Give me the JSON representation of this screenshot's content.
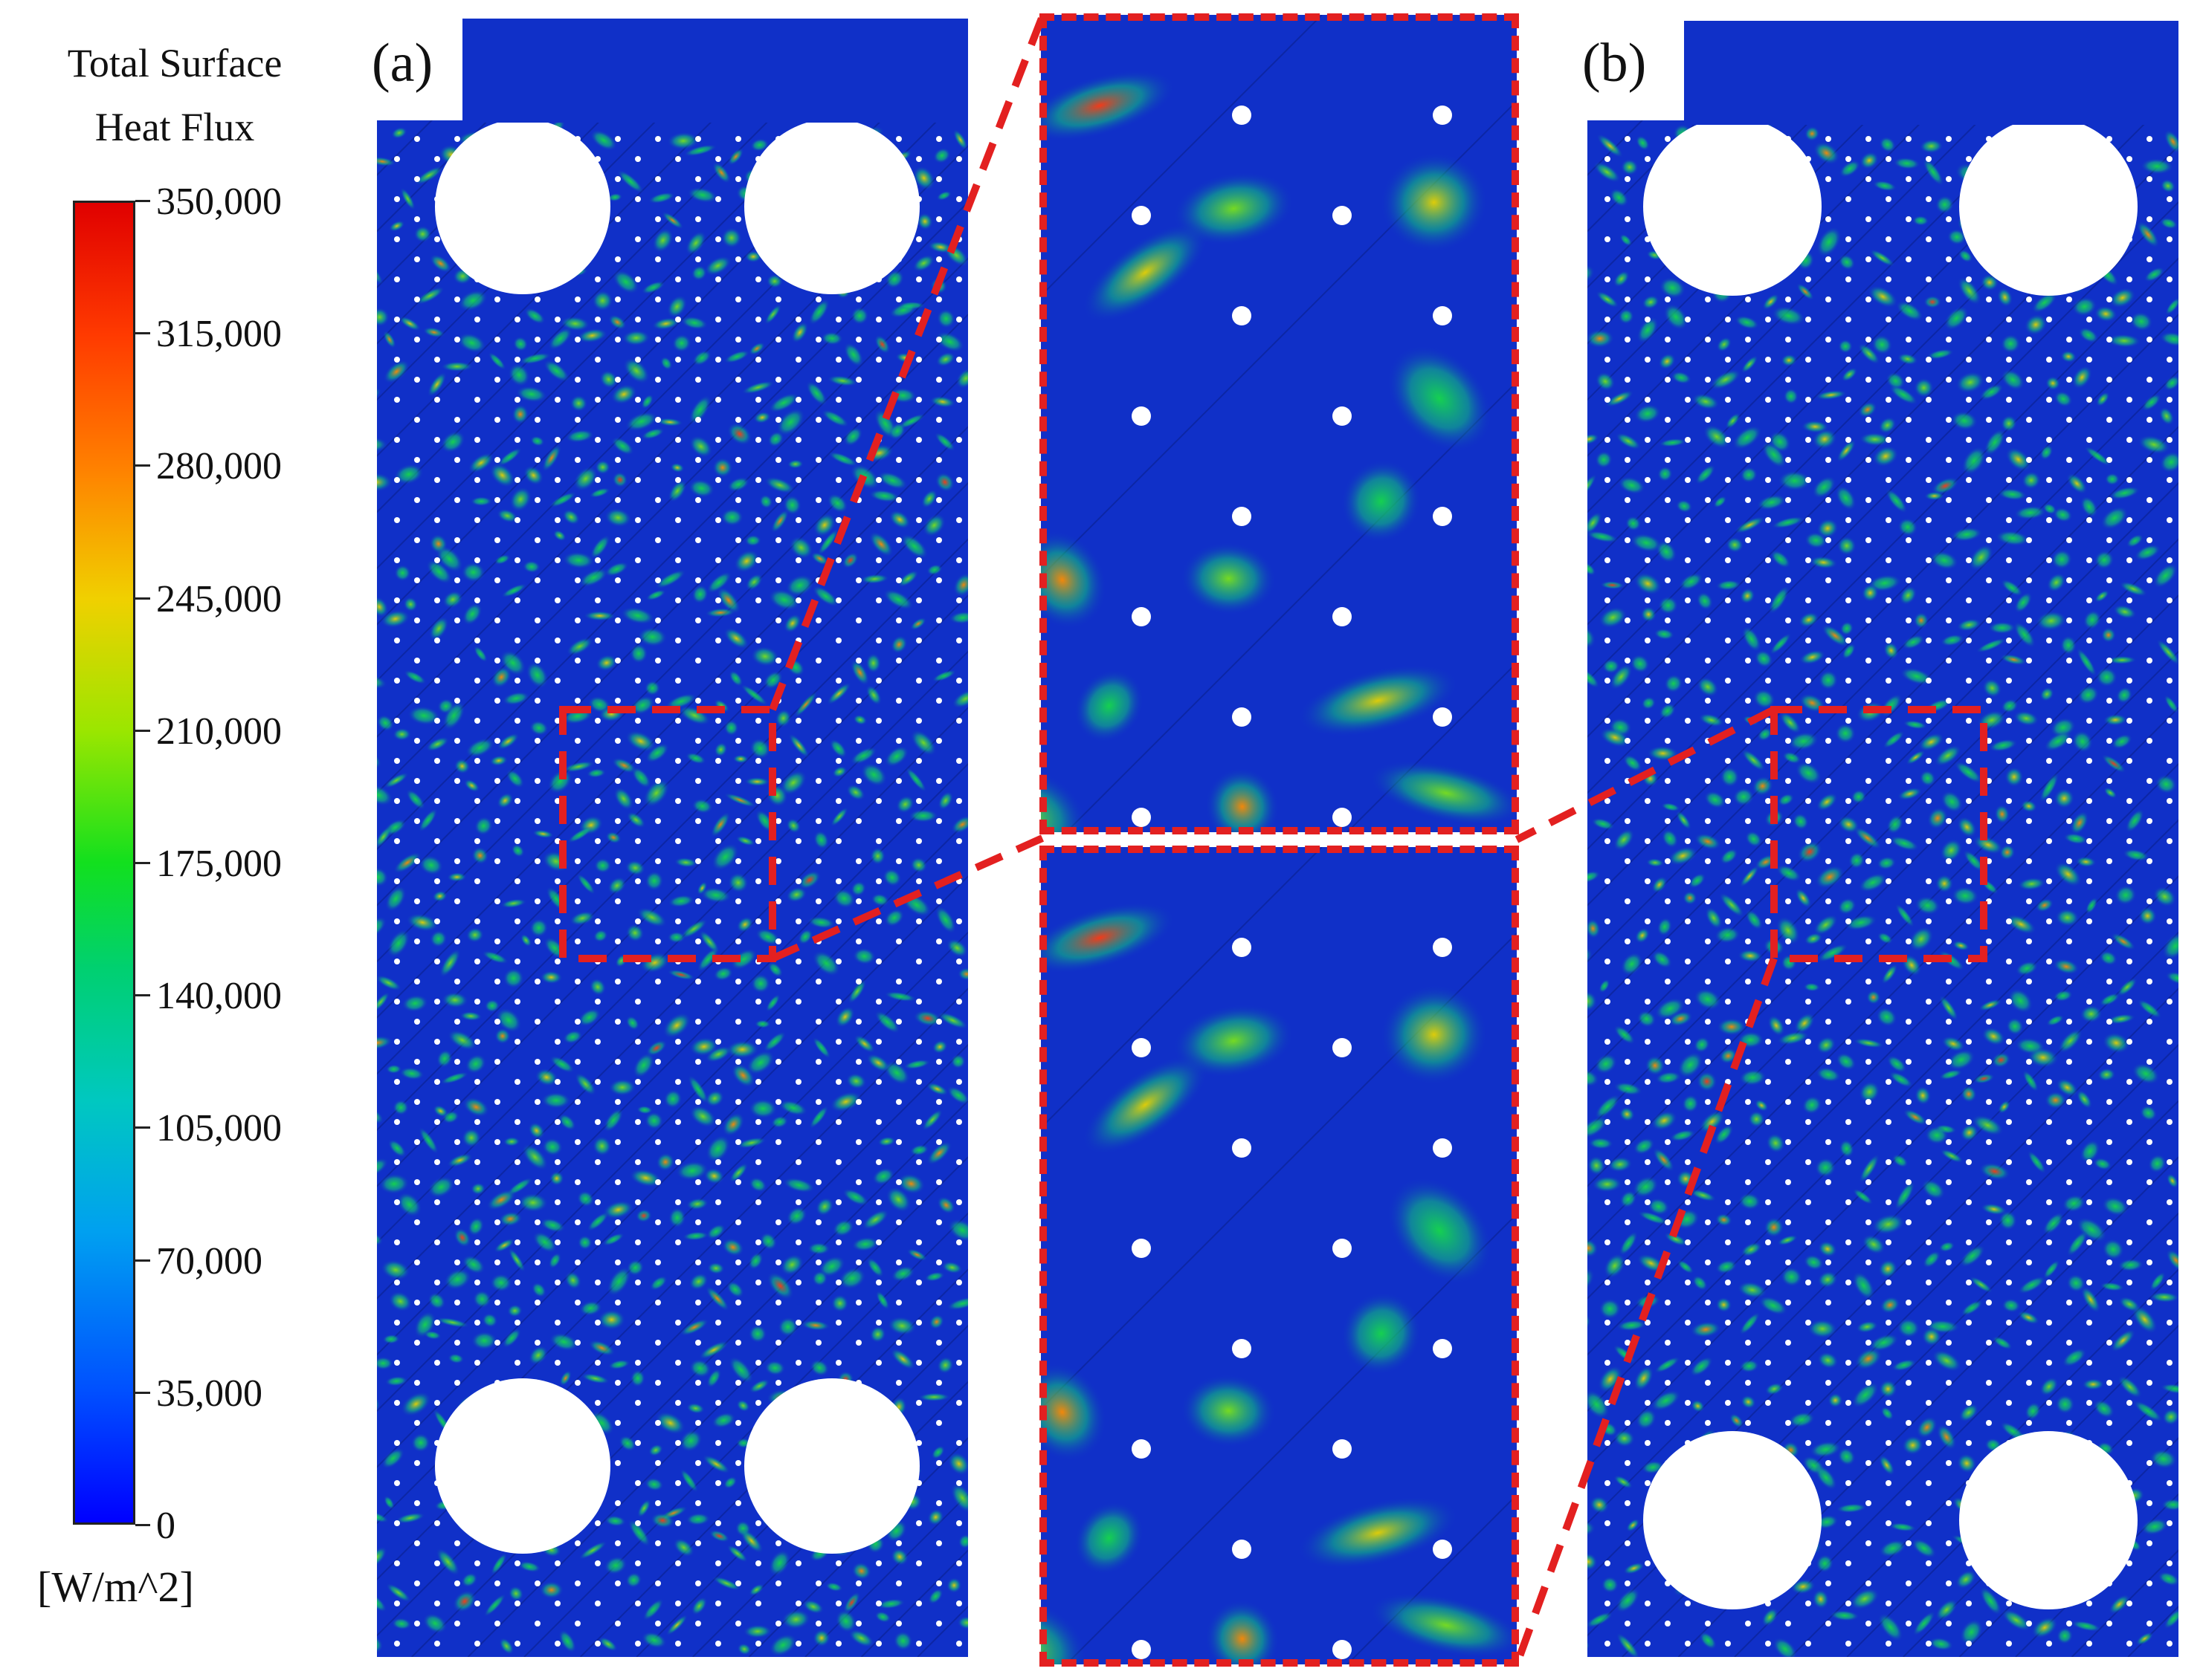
{
  "colorbar": {
    "title_line1": "Total Surface",
    "title_line2": "Heat Flux",
    "unit": "[W/m^2]",
    "ticks": [
      "350,000",
      "315,000",
      "280,000",
      "245,000",
      "210,000",
      "175,000",
      "140,000",
      "105,000",
      "70,000",
      "35,000",
      "0"
    ],
    "min": 0,
    "max": 350000
  },
  "panels": {
    "a_label": "(a)",
    "b_label": "(b)"
  },
  "colors": {
    "base_blue": "#1030c8",
    "highlight_red": "#e32020",
    "dot": "#ffffff"
  }
}
